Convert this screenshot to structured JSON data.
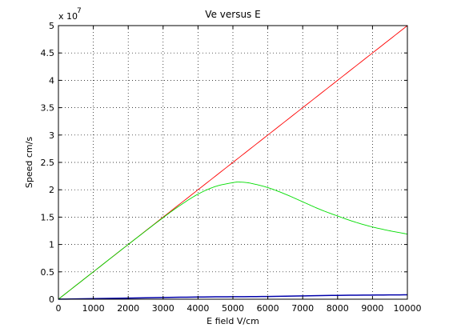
{
  "chart_data": {
    "type": "line",
    "title": "Ve versus E",
    "xlabel": "E field V/cm",
    "ylabel": "Speed cm/s",
    "y_exponent_label": "x 10",
    "y_exponent_power": "7",
    "xlim": [
      0,
      10000
    ],
    "ylim": [
      0,
      5
    ],
    "y_scale_multiplier": 10000000,
    "x_ticks": [
      "0",
      "1000",
      "2000",
      "3000",
      "4000",
      "5000",
      "6000",
      "7000",
      "8000",
      "9000",
      "10000"
    ],
    "y_ticks": [
      "0",
      "0.5",
      "1",
      "1.5",
      "2",
      "2.5",
      "3",
      "3.5",
      "4",
      "4.5",
      "5"
    ],
    "grid": true,
    "series": [
      {
        "color": "#ff0000",
        "x": [
          0,
          1000,
          2000,
          3000,
          4000,
          5000,
          6000,
          7000,
          8000,
          9000,
          10000
        ],
        "y": [
          0,
          0.5,
          1.0,
          1.5,
          2.0,
          2.5,
          3.0,
          3.5,
          4.0,
          4.5,
          5.0
        ]
      },
      {
        "color": "#00dd00",
        "x": [
          0,
          1000,
          2000,
          3000,
          3500,
          4000,
          4500,
          5000,
          5200,
          5500,
          6000,
          6500,
          7000,
          7500,
          8000,
          8500,
          9000,
          9500,
          10000
        ],
        "y": [
          0,
          0.5,
          1.0,
          1.49,
          1.72,
          1.92,
          2.06,
          2.13,
          2.14,
          2.12,
          2.04,
          1.92,
          1.78,
          1.64,
          1.52,
          1.41,
          1.32,
          1.25,
          1.19
        ]
      },
      {
        "color": "#0000aa",
        "x": [
          0,
          2000,
          4000,
          6000,
          8000,
          10000
        ],
        "y": [
          0,
          0.02,
          0.04,
          0.05,
          0.07,
          0.08
        ]
      }
    ]
  }
}
